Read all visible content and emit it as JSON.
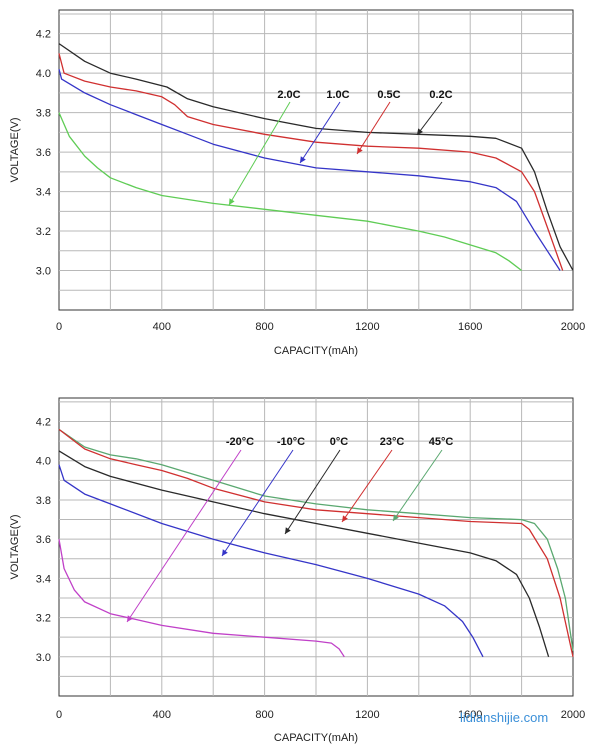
{
  "chart_data": [
    {
      "type": "line",
      "title": "",
      "xlabel": "CAPACITY(mAh)",
      "ylabel": "VOLTAGE(V)",
      "xlim": [
        0,
        2000
      ],
      "ylim": [
        2.8,
        4.32
      ],
      "xticks": [
        "0",
        "400",
        "800",
        "1200",
        "1600",
        "2000"
      ],
      "yticks": [
        "3.0",
        "3.2",
        "3.4",
        "3.6",
        "3.8",
        "4.0",
        "4.2"
      ],
      "grid": true,
      "series": [
        {
          "name": "0.2C",
          "color": "#2a2a2a",
          "x": [
            0,
            100,
            200,
            300,
            420,
            500,
            600,
            800,
            1000,
            1200,
            1400,
            1600,
            1700,
            1800,
            1850,
            1900,
            1950,
            2000
          ],
          "y": [
            4.15,
            4.06,
            4.0,
            3.97,
            3.93,
            3.87,
            3.83,
            3.77,
            3.72,
            3.7,
            3.69,
            3.68,
            3.67,
            3.62,
            3.5,
            3.3,
            3.12,
            3.0
          ]
        },
        {
          "name": "0.5C",
          "color": "#d03030",
          "x": [
            0,
            20,
            100,
            200,
            300,
            400,
            450,
            500,
            600,
            800,
            1000,
            1200,
            1400,
            1600,
            1700,
            1800,
            1850,
            1900,
            1960
          ],
          "y": [
            4.1,
            4.0,
            3.96,
            3.93,
            3.91,
            3.88,
            3.84,
            3.78,
            3.74,
            3.69,
            3.65,
            3.63,
            3.62,
            3.6,
            3.57,
            3.5,
            3.4,
            3.22,
            3.0
          ]
        },
        {
          "name": "1.0C",
          "color": "#3535c8",
          "x": [
            0,
            10,
            100,
            200,
            300,
            400,
            500,
            600,
            800,
            1000,
            1200,
            1400,
            1600,
            1700,
            1780,
            1850,
            1900,
            1950
          ],
          "y": [
            4.02,
            3.97,
            3.9,
            3.84,
            3.79,
            3.74,
            3.69,
            3.64,
            3.57,
            3.52,
            3.5,
            3.48,
            3.45,
            3.42,
            3.35,
            3.2,
            3.1,
            3.0
          ]
        },
        {
          "name": "2.0C",
          "color": "#5fcc55",
          "x": [
            0,
            40,
            100,
            150,
            200,
            300,
            400,
            600,
            800,
            1000,
            1200,
            1400,
            1500,
            1600,
            1700,
            1750,
            1800
          ],
          "y": [
            3.8,
            3.68,
            3.58,
            3.52,
            3.47,
            3.42,
            3.38,
            3.34,
            3.31,
            3.28,
            3.25,
            3.2,
            3.17,
            3.13,
            3.09,
            3.05,
            3.0
          ]
        }
      ],
      "annotations": [
        {
          "text": "2.0C",
          "series": "2.0C"
        },
        {
          "text": "1.0C",
          "series": "1.0C"
        },
        {
          "text": "0.5C",
          "series": "0.5C"
        },
        {
          "text": "0.2C",
          "series": "0.2C"
        }
      ]
    },
    {
      "type": "line",
      "title": "",
      "xlabel": "CAPACITY(mAh)",
      "ylabel": "VOLTAGE(V)",
      "xlim": [
        0,
        2000
      ],
      "ylim": [
        2.8,
        4.32
      ],
      "xticks": [
        "0",
        "400",
        "800",
        "1200",
        "1600",
        "2000"
      ],
      "yticks": [
        "3.0",
        "3.2",
        "3.4",
        "3.6",
        "3.8",
        "4.0",
        "4.2"
      ],
      "grid": true,
      "series": [
        {
          "name": "45°C",
          "color": "#5aa870",
          "x": [
            0,
            100,
            200,
            300,
            400,
            500,
            600,
            800,
            1000,
            1200,
            1400,
            1600,
            1800,
            1850,
            1900,
            1940,
            1970,
            2000
          ],
          "y": [
            4.16,
            4.07,
            4.03,
            4.01,
            3.98,
            3.94,
            3.9,
            3.82,
            3.78,
            3.75,
            3.73,
            3.71,
            3.7,
            3.68,
            3.6,
            3.45,
            3.3,
            3.03
          ]
        },
        {
          "name": "23°C",
          "color": "#d03030",
          "x": [
            0,
            100,
            200,
            300,
            400,
            500,
            600,
            800,
            1000,
            1200,
            1400,
            1600,
            1800,
            1830,
            1900,
            1950,
            2000
          ],
          "y": [
            4.16,
            4.06,
            4.01,
            3.98,
            3.95,
            3.91,
            3.86,
            3.79,
            3.75,
            3.73,
            3.71,
            3.69,
            3.68,
            3.65,
            3.5,
            3.3,
            3.0
          ]
        },
        {
          "name": "0°C",
          "color": "#2a2a2a",
          "x": [
            0,
            100,
            200,
            400,
            600,
            800,
            1000,
            1200,
            1400,
            1600,
            1700,
            1780,
            1830,
            1870,
            1905
          ],
          "y": [
            4.05,
            3.97,
            3.92,
            3.85,
            3.79,
            3.73,
            3.68,
            3.63,
            3.58,
            3.53,
            3.49,
            3.42,
            3.3,
            3.15,
            3.0
          ]
        },
        {
          "name": "-10°C",
          "color": "#3535c8",
          "x": [
            0,
            20,
            100,
            200,
            400,
            600,
            800,
            1000,
            1200,
            1400,
            1500,
            1570,
            1610,
            1650
          ],
          "y": [
            3.98,
            3.9,
            3.83,
            3.78,
            3.68,
            3.6,
            3.53,
            3.47,
            3.4,
            3.32,
            3.26,
            3.18,
            3.1,
            3.0
          ]
        },
        {
          "name": "-20°C",
          "color": "#c040c8",
          "x": [
            0,
            20,
            60,
            100,
            200,
            300,
            400,
            600,
            800,
            1000,
            1060,
            1090,
            1110
          ],
          "y": [
            3.6,
            3.45,
            3.34,
            3.28,
            3.22,
            3.19,
            3.16,
            3.12,
            3.1,
            3.08,
            3.07,
            3.04,
            3.0
          ]
        }
      ],
      "annotations": [
        {
          "text": "-20°C",
          "series": "-20°C"
        },
        {
          "text": "-10°C",
          "series": "-10°C"
        },
        {
          "text": "0°C",
          "series": "0°C"
        },
        {
          "text": "23°C",
          "series": "23°C"
        },
        {
          "text": "45°C",
          "series": "45°C"
        }
      ]
    }
  ],
  "watermark": "lidianshijie.com"
}
